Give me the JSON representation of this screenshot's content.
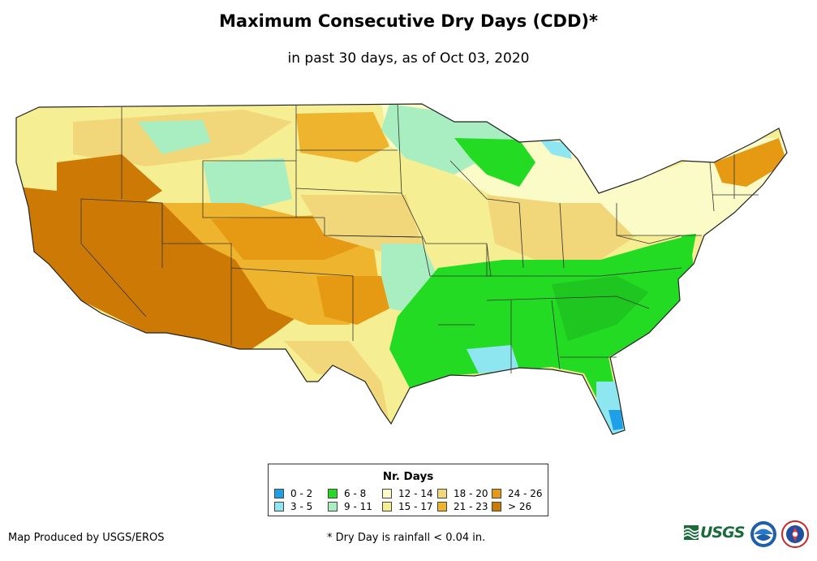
{
  "header": {
    "title": "Maximum Consecutive Dry Days (CDD)*",
    "subtitle": "in past 30 days, as of Oct 03, 2020"
  },
  "legend": {
    "title": "Nr. Days",
    "items": [
      {
        "label": "0 - 2",
        "color": "#1E9FE8"
      },
      {
        "label": "3 - 5",
        "color": "#8EE6F0"
      },
      {
        "label": "6 - 8",
        "color": "#22DB22"
      },
      {
        "label": "9 - 11",
        "color": "#A8EEC0"
      },
      {
        "label": "12 - 14",
        "color": "#FBFBC8"
      },
      {
        "label": "15 - 17",
        "color": "#F5EE92"
      },
      {
        "label": "18 - 20",
        "color": "#F2D77A"
      },
      {
        "label": "21 - 23",
        "color": "#EFB42E"
      },
      {
        "label": "24 - 26",
        "color": "#E69A14"
      },
      {
        "label": "> 26",
        "color": "#CC7A05"
      }
    ]
  },
  "footer": {
    "credit": "Map Produced by USGS/EROS",
    "footnote": "* Dry Day is rainfall < 0.04 in.",
    "usgs_text": "USGS"
  },
  "logos": [
    "usgs-logo",
    "noaa-logo",
    "nws-logo"
  ]
}
